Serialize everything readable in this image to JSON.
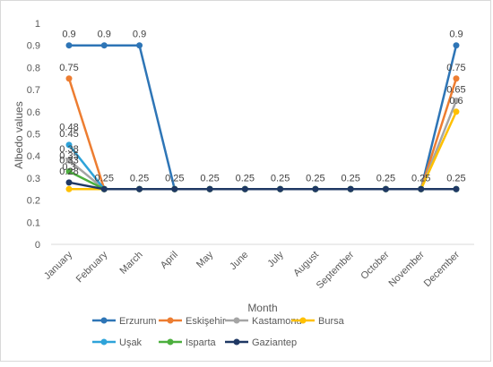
{
  "chart_data": {
    "type": "line",
    "title": "",
    "xlabel": "Month",
    "ylabel": "Albedo values",
    "ylim": [
      0,
      1
    ],
    "yticks": [
      "0",
      "0.1",
      "0.2",
      "0.3",
      "0.4",
      "0.5",
      "0.6",
      "0.7",
      "0.8",
      "0.9",
      "1"
    ],
    "grid": false,
    "legend": "bottom",
    "categories": [
      "January",
      "February",
      "March",
      "April",
      "May",
      "June",
      "July",
      "August",
      "September",
      "October",
      "November",
      "December"
    ],
    "series": [
      {
        "name": "Erzurum",
        "color": "#2E75B6",
        "values": [
          0.9,
          0.9,
          0.9,
          0.25,
          0.25,
          0.25,
          0.25,
          0.25,
          0.25,
          0.25,
          0.25,
          0.9
        ],
        "labels": [
          "0.9",
          "0.9",
          "0.9",
          "",
          "",
          "",
          "",
          "",
          "",
          "",
          "",
          "0.9"
        ]
      },
      {
        "name": "Eskişehir",
        "color": "#ED7D31",
        "values": [
          0.75,
          0.25,
          0.25,
          0.25,
          0.25,
          0.25,
          0.25,
          0.25,
          0.25,
          0.25,
          0.25,
          0.75
        ],
        "labels": [
          "0.75",
          "",
          "",
          "",
          "",
          "",
          "",
          "",
          "",
          "",
          "",
          "0.75"
        ]
      },
      {
        "name": "Kastamonu",
        "color": "#A5A5A5",
        "values": [
          0.38,
          0.25,
          0.25,
          0.25,
          0.25,
          0.25,
          0.25,
          0.25,
          0.25,
          0.25,
          0.25,
          0.65
        ],
        "labels": [
          "0.38",
          "",
          "",
          "",
          "",
          "",
          "",
          "",
          "",
          "",
          "",
          "0.65"
        ]
      },
      {
        "name": "Bursa",
        "color": "#FFC000",
        "values": [
          0.25,
          0.25,
          0.25,
          0.25,
          0.25,
          0.25,
          0.25,
          0.25,
          0.25,
          0.25,
          0.25,
          0.6
        ],
        "labels": [
          "",
          "",
          "",
          "",
          "",
          "",
          "",
          "",
          "",
          "",
          "",
          "0.6"
        ]
      },
      {
        "name": "Uşak",
        "color": "#2EA3D9",
        "values": [
          0.45,
          0.25,
          0.25,
          0.25,
          0.25,
          0.25,
          0.25,
          0.25,
          0.25,
          0.25,
          0.25,
          0.25
        ],
        "labels": [
          "0.45",
          "",
          "",
          "",
          "",
          "",
          "",
          "",
          "",
          "",
          "",
          ""
        ]
      },
      {
        "name": "Isparta",
        "color": "#4CAF3E",
        "values": [
          0.33,
          0.25,
          0.25,
          0.25,
          0.25,
          0.25,
          0.25,
          0.25,
          0.25,
          0.25,
          0.25,
          0.25
        ],
        "labels": [
          "0.33",
          "",
          "",
          "",
          "",
          "",
          "",
          "",
          "",
          "",
          "",
          ""
        ]
      },
      {
        "name": "Gaziantep",
        "color": "#1F3864",
        "values": [
          0.28,
          0.25,
          0.25,
          0.25,
          0.25,
          0.25,
          0.25,
          0.25,
          0.25,
          0.25,
          0.25,
          0.25
        ],
        "labels": [
          "0.28",
          "0.25",
          "0.25",
          "0.25",
          "0.25",
          "0.25",
          "0.25",
          "0.25",
          "0.25",
          "0.25",
          "0.25",
          "0.25"
        ]
      }
    ]
  },
  "jan_extra_labels": [
    "0.48",
    "0.35",
    "0.3"
  ]
}
